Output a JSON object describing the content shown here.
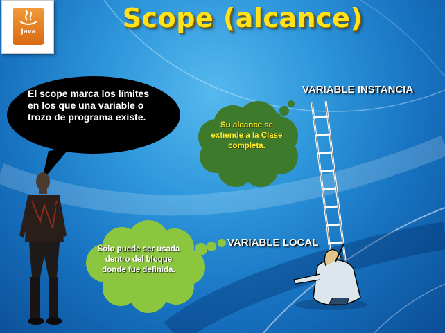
{
  "slide": {
    "title": "Scope (alcance)",
    "logo": {
      "text": "Java",
      "icon": "java-cup-icon"
    },
    "speech_bubble": {
      "text": "El scope marca los límites en los que una variable o trozo de programa existe."
    },
    "thought_top": {
      "text": "Su alcance se extiende a la Clase completa."
    },
    "thought_bottom": {
      "text": "Sólo puede ser usada dentro del bloque donde fue definida."
    },
    "labels": {
      "instancia": "VARIABLE INSTANCIA",
      "local": "VARIABLE LOCAL"
    },
    "colors": {
      "title": "#ffe21a",
      "background": "#2f98dc",
      "bubble_green": "#3e7a2c",
      "bubble_light_green": "#8cc63f"
    }
  }
}
